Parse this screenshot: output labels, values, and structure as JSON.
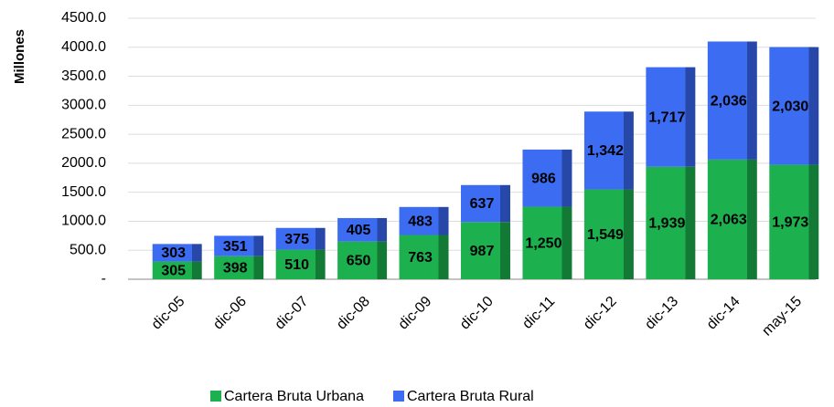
{
  "chart_data": {
    "type": "stacked-bar",
    "y_label": "Millones",
    "categories": [
      "dic-05",
      "dic-06",
      "dic-07",
      "dic-08",
      "dic-09",
      "dic-10",
      "dic-11",
      "dic-12",
      "dic-13",
      "dic-14",
      "may-15"
    ],
    "series": [
      {
        "name": "Cartera Bruta Urbana",
        "color": "#1db04e",
        "side_color": "#137a36",
        "values": [
          305,
          398,
          510,
          650,
          763,
          987,
          1250,
          1549,
          1939,
          2063,
          1973
        ],
        "value_labels": [
          "305",
          "398",
          "510",
          "650",
          "763",
          "987",
          "1,250",
          "1,549",
          "1,939",
          "2,063",
          "1,973"
        ]
      },
      {
        "name": "Cartera Bruta Rural",
        "color": "#3b6cf2",
        "side_color": "#2748a8",
        "values": [
          303,
          351,
          375,
          405,
          483,
          637,
          986,
          1342,
          1717,
          2036,
          2030
        ],
        "value_labels": [
          "303",
          "351",
          "375",
          "405",
          "483",
          "637",
          "986",
          "1,342",
          "1,717",
          "2,036",
          "2,030"
        ]
      }
    ],
    "ylim": [
      0,
      4500
    ],
    "yticks": [
      {
        "value": 0,
        "label": "-"
      },
      {
        "value": 500,
        "label": "500.0"
      },
      {
        "value": 1000,
        "label": "1000.0"
      },
      {
        "value": 1500,
        "label": "1500.0"
      },
      {
        "value": 2000,
        "label": "2000.0"
      },
      {
        "value": 2500,
        "label": "2500.0"
      },
      {
        "value": 3000,
        "label": "3000.0"
      },
      {
        "value": 3500,
        "label": "3500.0"
      },
      {
        "value": 4000,
        "label": "4000.0"
      },
      {
        "value": 4500,
        "label": "4500.0"
      }
    ],
    "grid": true,
    "legend": "bottom"
  }
}
